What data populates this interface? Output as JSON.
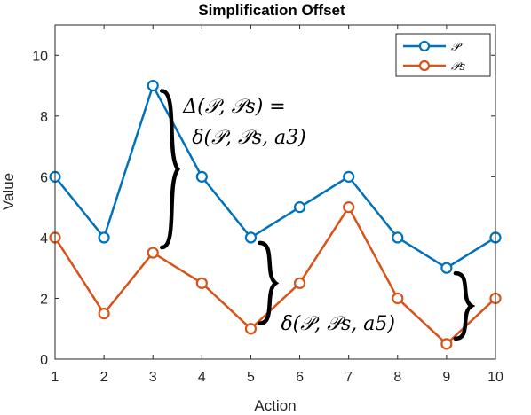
{
  "chart_data": {
    "type": "line",
    "title": "Simplification Offset",
    "xlabel": "Action",
    "ylabel": "Value",
    "x": [
      1,
      2,
      3,
      4,
      5,
      6,
      7,
      8,
      9,
      10
    ],
    "xlim": [
      1,
      10
    ],
    "ylim": [
      0,
      11
    ],
    "xticks": [
      1,
      2,
      3,
      4,
      5,
      6,
      7,
      8,
      9,
      10
    ],
    "yticks": [
      0,
      2,
      4,
      6,
      8,
      10
    ],
    "grid": false,
    "legend_position": "top-right",
    "series": [
      {
        "name": "𝒫",
        "color": "#0072BD",
        "values": [
          6,
          4,
          9,
          6,
          4,
          5,
          6,
          4,
          3,
          4
        ]
      },
      {
        "name": "𝒫s",
        "color": "#D95319",
        "values": [
          4,
          1.5,
          3.5,
          2.5,
          1,
          2.5,
          5,
          2,
          0.5,
          2
        ]
      }
    ],
    "annotations": [
      {
        "text_line1": "Δ(𝒫, 𝒫s) =",
        "text_line2": "δ(𝒫, 𝒫s, a3)",
        "x": 3,
        "y_from": 3.5,
        "y_to": 9
      },
      {
        "text": "δ(𝒫, 𝒫s, a5)",
        "x": 5,
        "y_from": 1,
        "y_to": 4
      },
      {
        "text": "",
        "x": 9,
        "y_from": 0.5,
        "y_to": 3
      }
    ]
  }
}
